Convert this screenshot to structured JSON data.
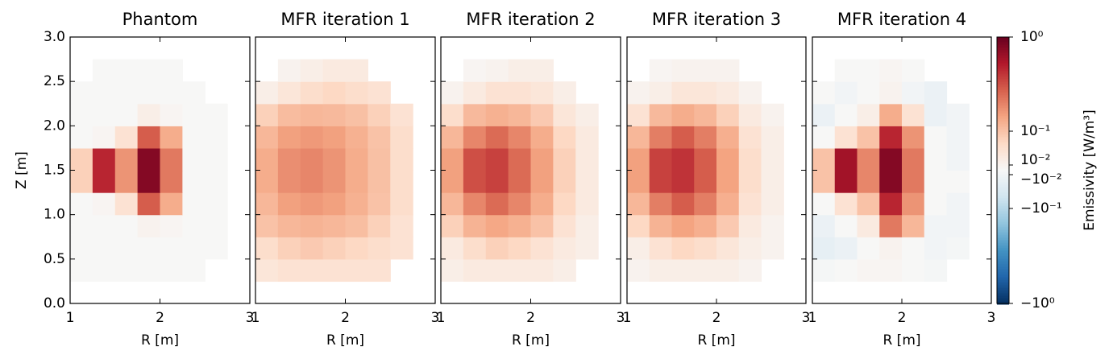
{
  "chart_data": {
    "type": "heatmap",
    "xlabel": "R [m]",
    "ylabel": "Z [m]",
    "x": [
      1.125,
      1.375,
      1.625,
      1.875,
      2.125,
      2.375,
      2.625,
      2.875
    ],
    "y": [
      0.125,
      0.375,
      0.625,
      0.875,
      1.125,
      1.375,
      1.625,
      1.875,
      2.125,
      2.375,
      2.625,
      2.875
    ],
    "xlim": [
      1,
      3
    ],
    "ylim": [
      0,
      3
    ],
    "xticks": [
      1,
      2,
      3
    ],
    "yticks": [
      {
        "value": 0,
        "label": "0.0"
      },
      {
        "value": 0.5,
        "label": "0.5"
      },
      {
        "value": 1,
        "label": "1.0"
      },
      {
        "value": 1.5,
        "label": "1.5"
      },
      {
        "value": 2,
        "label": "2.0"
      },
      {
        "value": 2.5,
        "label": "2.5"
      },
      {
        "value": 3,
        "label": "3.0"
      }
    ],
    "panels": [
      {
        "title": "Phantom",
        "z": [
          [
            null,
            null,
            null,
            null,
            null,
            null,
            null,
            null
          ],
          [
            0,
            0,
            0,
            0,
            0,
            0,
            null,
            null
          ],
          [
            0,
            0,
            0,
            0,
            0,
            0,
            0,
            null
          ],
          [
            0,
            0,
            0,
            0.01,
            0.005,
            0,
            0,
            null
          ],
          [
            0,
            0.005,
            0.05,
            0.5,
            0.2,
            0,
            0,
            null
          ],
          [
            0.08,
            0.7,
            0.3,
            0.9,
            0.4,
            0,
            0,
            null
          ],
          [
            0.08,
            0.7,
            0.3,
            0.9,
            0.4,
            0,
            0,
            null
          ],
          [
            0,
            0.005,
            0.05,
            0.5,
            0.2,
            0,
            0,
            null
          ],
          [
            0,
            0,
            0,
            0.02,
            0.005,
            0,
            0,
            null
          ],
          [
            0,
            0,
            0,
            0,
            0,
            0,
            null,
            null
          ],
          [
            null,
            0,
            0,
            0,
            0,
            null,
            null,
            null
          ],
          [
            null,
            null,
            null,
            null,
            null,
            null,
            null,
            null
          ]
        ]
      },
      {
        "title": "MFR iteration 1",
        "z": [
          [
            null,
            null,
            null,
            null,
            null,
            null,
            null,
            null
          ],
          [
            0.04,
            0.05,
            0.05,
            0.05,
            0.05,
            0.05,
            null,
            null
          ],
          [
            0.06,
            0.08,
            0.09,
            0.08,
            0.07,
            0.06,
            0.05,
            null
          ],
          [
            0.1,
            0.15,
            0.17,
            0.15,
            0.12,
            0.08,
            0.05,
            null
          ],
          [
            0.15,
            0.25,
            0.28,
            0.25,
            0.18,
            0.1,
            0.06,
            null
          ],
          [
            0.2,
            0.32,
            0.35,
            0.3,
            0.2,
            0.11,
            0.06,
            null
          ],
          [
            0.2,
            0.32,
            0.35,
            0.3,
            0.2,
            0.11,
            0.06,
            null
          ],
          [
            0.15,
            0.25,
            0.28,
            0.25,
            0.18,
            0.1,
            0.06,
            null
          ],
          [
            0.08,
            0.13,
            0.15,
            0.14,
            0.11,
            0.08,
            0.05,
            null
          ],
          [
            0.02,
            0.04,
            0.06,
            0.07,
            0.06,
            0.05,
            null,
            null
          ],
          [
            null,
            0.01,
            0.02,
            0.03,
            0.03,
            null,
            null,
            null
          ],
          [
            null,
            null,
            null,
            null,
            null,
            null,
            null,
            null
          ]
        ]
      },
      {
        "title": "MFR iteration 2",
        "z": [
          [
            null,
            null,
            null,
            null,
            null,
            null,
            null,
            null
          ],
          [
            0.02,
            0.03,
            0.03,
            0.03,
            0.03,
            0.02,
            null,
            null
          ],
          [
            0.03,
            0.06,
            0.08,
            0.07,
            0.05,
            0.03,
            0.02,
            null
          ],
          [
            0.08,
            0.17,
            0.22,
            0.18,
            0.1,
            0.05,
            0.02,
            null
          ],
          [
            0.15,
            0.35,
            0.45,
            0.35,
            0.2,
            0.07,
            0.03,
            null
          ],
          [
            0.25,
            0.55,
            0.6,
            0.45,
            0.25,
            0.08,
            0.03,
            null
          ],
          [
            0.25,
            0.55,
            0.6,
            0.45,
            0.25,
            0.08,
            0.03,
            null
          ],
          [
            0.15,
            0.35,
            0.45,
            0.35,
            0.2,
            0.07,
            0.03,
            null
          ],
          [
            0.06,
            0.14,
            0.18,
            0.15,
            0.09,
            0.04,
            0.02,
            null
          ],
          [
            0.01,
            0.03,
            0.05,
            0.05,
            0.04,
            0.02,
            null,
            null
          ],
          [
            null,
            0.005,
            0.01,
            0.02,
            0.02,
            null,
            null,
            null
          ],
          [
            null,
            null,
            null,
            null,
            null,
            null,
            null,
            null
          ]
        ]
      },
      {
        "title": "MFR iteration 3",
        "z": [
          [
            null,
            null,
            null,
            null,
            null,
            null,
            null,
            null
          ],
          [
            0.01,
            0.02,
            0.02,
            0.02,
            0.02,
            0.01,
            null,
            null
          ],
          [
            0.02,
            0.05,
            0.07,
            0.06,
            0.04,
            0.02,
            0.01,
            null
          ],
          [
            0.07,
            0.17,
            0.24,
            0.19,
            0.09,
            0.03,
            0.01,
            null
          ],
          [
            0.15,
            0.38,
            0.5,
            0.38,
            0.19,
            0.05,
            0.02,
            null
          ],
          [
            0.25,
            0.6,
            0.65,
            0.5,
            0.24,
            0.06,
            0.02,
            null
          ],
          [
            0.25,
            0.6,
            0.65,
            0.5,
            0.24,
            0.06,
            0.02,
            null
          ],
          [
            0.15,
            0.38,
            0.5,
            0.38,
            0.19,
            0.05,
            0.02,
            null
          ],
          [
            0.05,
            0.14,
            0.2,
            0.15,
            0.08,
            0.03,
            0.01,
            null
          ],
          [
            0.01,
            0.02,
            0.04,
            0.04,
            0.03,
            0.01,
            null,
            null
          ],
          [
            null,
            0.005,
            0.01,
            0.01,
            0.01,
            null,
            null,
            null
          ],
          [
            null,
            null,
            null,
            null,
            null,
            null,
            null,
            null
          ]
        ]
      },
      {
        "title": "MFR iteration 4",
        "z": [
          [
            null,
            null,
            null,
            null,
            null,
            null,
            null,
            null
          ],
          [
            -0.005,
            0,
            0.005,
            0.005,
            0,
            -0.005,
            null,
            null
          ],
          [
            -0.03,
            -0.02,
            0,
            0.01,
            0,
            -0.01,
            -0.005,
            null
          ],
          [
            -0.02,
            0,
            0.03,
            0.4,
            0.15,
            -0.01,
            -0.01,
            null
          ],
          [
            0,
            0.05,
            0.1,
            0.7,
            0.3,
            0,
            -0.01,
            null
          ],
          [
            0.1,
            0.8,
            0.35,
            0.9,
            0.4,
            0,
            0,
            null
          ],
          [
            0.1,
            0.8,
            0.35,
            0.9,
            0.4,
            0,
            -0.01,
            null
          ],
          [
            0,
            0.05,
            0.1,
            0.7,
            0.3,
            0,
            -0.01,
            null
          ],
          [
            -0.02,
            0,
            0.02,
            0.2,
            0.05,
            -0.02,
            -0.01,
            null
          ],
          [
            0,
            -0.01,
            0,
            0.01,
            -0.01,
            -0.02,
            null,
            null
          ],
          [
            null,
            0,
            0,
            0.005,
            0,
            null,
            null,
            null
          ],
          [
            null,
            null,
            null,
            null,
            null,
            null,
            null,
            null
          ]
        ]
      }
    ],
    "colorbar": {
      "label": "Emissivity [W/m³]",
      "lim": [
        -1,
        1
      ],
      "ticks": [
        {
          "value": -1,
          "label": "−10⁰"
        },
        {
          "value": -0.1,
          "label": "−10⁻¹"
        },
        {
          "value": -0.01,
          "label": "−10⁻²"
        },
        {
          "value": 0.01,
          "label": "10⁻²"
        },
        {
          "value": 0.1,
          "label": "10⁻¹"
        },
        {
          "value": 1,
          "label": "10⁰"
        }
      ]
    }
  }
}
